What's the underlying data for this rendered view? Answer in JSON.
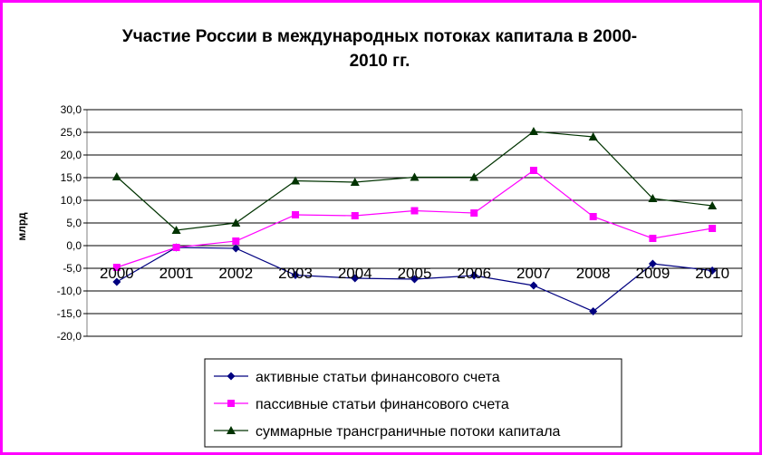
{
  "chart_data": {
    "type": "line",
    "title_lines": [
      "Участие России в международных потоках капитала в 2000-",
      "2010 гг."
    ],
    "ylabel": "млрд",
    "ylim": [
      -20,
      30
    ],
    "yticks": [
      "30,0",
      "25,0",
      "20,0",
      "15,0",
      "10,0",
      "5,0",
      "0,0",
      "-5,0",
      "-10,0",
      "-15,0",
      "-20,0"
    ],
    "ytick_values": [
      30,
      25,
      20,
      15,
      10,
      5,
      0,
      -5,
      -10,
      -15,
      -20
    ],
    "categories": [
      "2000",
      "2001",
      "2002",
      "2003",
      "2004",
      "2005",
      "2006",
      "2007",
      "2008",
      "2009",
      "2010"
    ],
    "grid": true,
    "legend_position": "bottom",
    "series": [
      {
        "name": "активные статьи финансового счета",
        "color": "#000080",
        "marker": "diamond",
        "values": [
          -8.0,
          -0.4,
          -0.6,
          -6.5,
          -7.2,
          -7.4,
          -6.6,
          -8.8,
          -14.5,
          -4.0,
          -5.5
        ]
      },
      {
        "name": "пассивные статьи финансового счета",
        "color": "#ff00ff",
        "marker": "square",
        "values": [
          -4.8,
          -0.4,
          1.0,
          6.8,
          6.6,
          7.7,
          7.2,
          16.6,
          6.4,
          1.6,
          3.8
        ]
      },
      {
        "name": "суммарные трансграничные потоки капитала",
        "color": "#003300",
        "marker": "triangle",
        "values": [
          15.2,
          3.4,
          5.0,
          14.3,
          14.0,
          15.1,
          15.1,
          25.2,
          24.0,
          10.4,
          8.8
        ]
      }
    ]
  }
}
